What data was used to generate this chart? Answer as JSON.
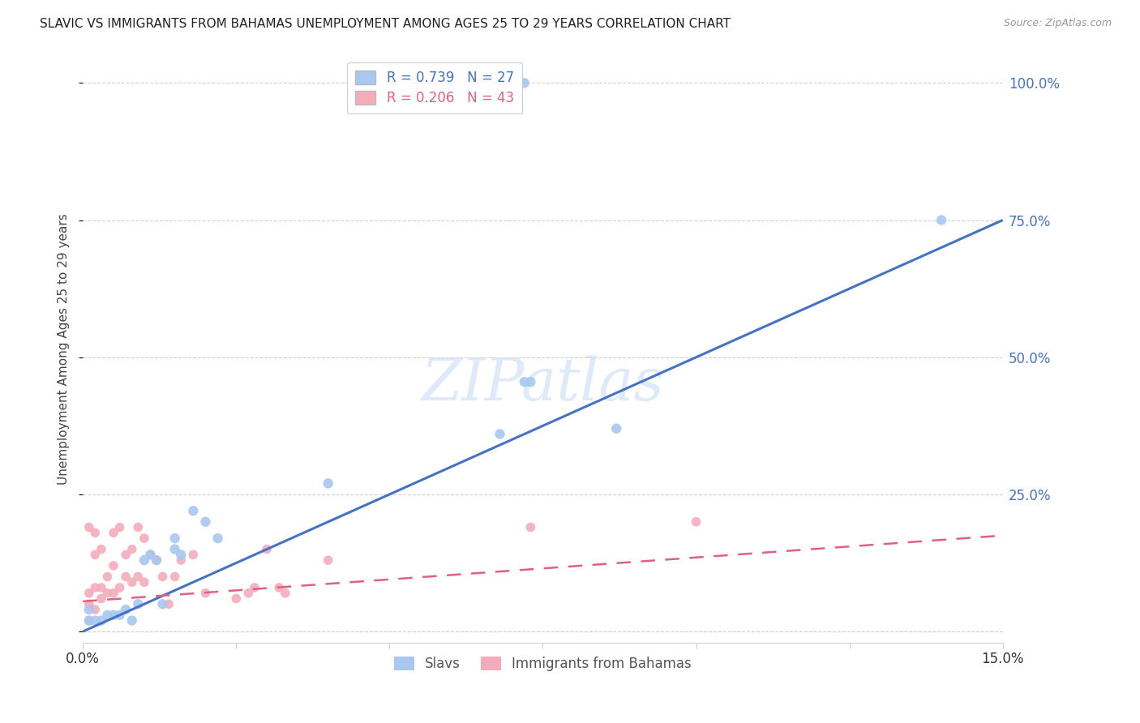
{
  "title": "SLAVIC VS IMMIGRANTS FROM BAHAMAS UNEMPLOYMENT AMONG AGES 25 TO 29 YEARS CORRELATION CHART",
  "source": "Source: ZipAtlas.com",
  "ylabel": "Unemployment Among Ages 25 to 29 years",
  "xlim": [
    0.0,
    0.15
  ],
  "ylim": [
    -0.02,
    1.05
  ],
  "legend_label1": "Slavs",
  "legend_label2": "Immigrants from Bahamas",
  "R1": 0.739,
  "N1": 27,
  "R2": 0.206,
  "N2": 43,
  "color_blue": "#A8C8F0",
  "color_blue_line": "#4472C4",
  "color_pink": "#F4ACBB",
  "color_pink_line": "#E06080",
  "blue_scatter_x": [
    0.001,
    0.001,
    0.002,
    0.003,
    0.004,
    0.005,
    0.006,
    0.007,
    0.008,
    0.009,
    0.01,
    0.011,
    0.012,
    0.013,
    0.015,
    0.015,
    0.016,
    0.018,
    0.02,
    0.022,
    0.04,
    0.068,
    0.072,
    0.073,
    0.087,
    0.14,
    0.072
  ],
  "blue_scatter_y": [
    0.02,
    0.04,
    0.02,
    0.02,
    0.03,
    0.03,
    0.03,
    0.04,
    0.02,
    0.05,
    0.13,
    0.14,
    0.13,
    0.05,
    0.15,
    0.17,
    0.14,
    0.22,
    0.2,
    0.17,
    0.27,
    0.36,
    0.455,
    0.455,
    0.37,
    0.75,
    1.0
  ],
  "pink_scatter_x": [
    0.001,
    0.001,
    0.001,
    0.001,
    0.002,
    0.002,
    0.002,
    0.002,
    0.003,
    0.003,
    0.003,
    0.004,
    0.004,
    0.005,
    0.005,
    0.005,
    0.006,
    0.006,
    0.007,
    0.007,
    0.008,
    0.008,
    0.009,
    0.009,
    0.01,
    0.01,
    0.011,
    0.012,
    0.013,
    0.014,
    0.015,
    0.016,
    0.018,
    0.02,
    0.025,
    0.027,
    0.028,
    0.03,
    0.032,
    0.033,
    0.04,
    0.073,
    0.1
  ],
  "pink_scatter_y": [
    0.02,
    0.05,
    0.19,
    0.07,
    0.04,
    0.08,
    0.14,
    0.18,
    0.06,
    0.08,
    0.15,
    0.07,
    0.1,
    0.07,
    0.12,
    0.18,
    0.08,
    0.19,
    0.1,
    0.14,
    0.09,
    0.15,
    0.1,
    0.19,
    0.09,
    0.17,
    0.14,
    0.13,
    0.1,
    0.05,
    0.1,
    0.13,
    0.14,
    0.07,
    0.06,
    0.07,
    0.08,
    0.15,
    0.08,
    0.07,
    0.13,
    0.19,
    0.2
  ],
  "blue_line_x0": 0.0,
  "blue_line_y0": 0.0,
  "blue_line_x1": 0.15,
  "blue_line_y1": 0.75,
  "pink_line_x0": 0.0,
  "pink_line_y0": 0.055,
  "pink_line_x1": 0.15,
  "pink_line_y1": 0.175,
  "ytick_vals": [
    0.0,
    0.25,
    0.5,
    0.75,
    1.0
  ],
  "ytick_labels": [
    "",
    "25.0%",
    "50.0%",
    "75.0%",
    "100.0%"
  ],
  "xtick_vals": [
    0.0,
    0.025,
    0.05,
    0.075,
    0.1,
    0.125,
    0.15
  ],
  "xtick_labels": [
    "0.0%",
    "",
    "",
    "",
    "",
    "",
    "15.0%"
  ],
  "grid_color": "#d0d0d0",
  "watermark_text": "ZIPatlas",
  "scatter_size_blue": 80,
  "scatter_size_pink": 70
}
